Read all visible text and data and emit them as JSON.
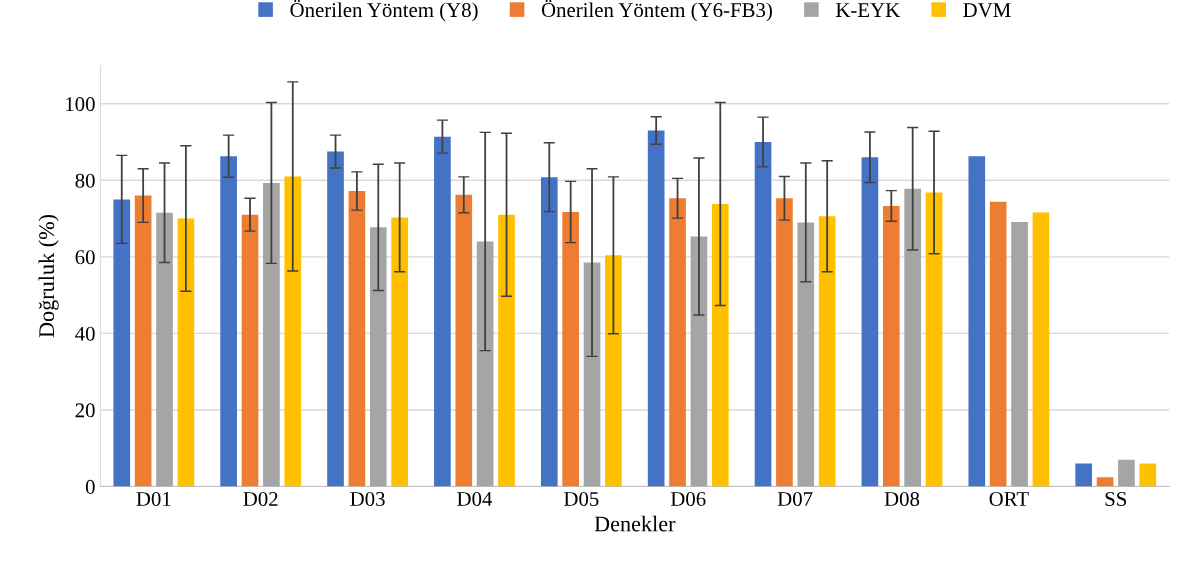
{
  "chart_data": {
    "type": "bar",
    "xlabel": "Denekler",
    "ylabel": "Doğruluk (%)",
    "categories": [
      "D01",
      "D02",
      "D03",
      "D04",
      "D05",
      "D06",
      "D07",
      "D08",
      "ORT",
      "SS"
    ],
    "series": [
      {
        "name": "Önerilen Yöntem (Y8)",
        "color": "#4472c4",
        "values": [
          75,
          86.3,
          87.5,
          91.4,
          80.8,
          93,
          90,
          86,
          86.3,
          6
        ],
        "errors": [
          11.5,
          5.5,
          4.3,
          4.3,
          9,
          3.6,
          6.5,
          6.6,
          null,
          null
        ]
      },
      {
        "name": "Önerilen Yöntem (Y6-FB3)",
        "color": "#ed7d31",
        "values": [
          76,
          71,
          77.2,
          76.2,
          71.7,
          75.3,
          75.3,
          73.3,
          74.4,
          2.4
        ],
        "errors": [
          7,
          4.3,
          5,
          4.7,
          8,
          5.2,
          5.7,
          4,
          null,
          null
        ]
      },
      {
        "name": "K-EYK",
        "color": "#a5a5a5",
        "values": [
          71.5,
          79.3,
          67.7,
          64,
          58.5,
          65.3,
          69,
          77.8,
          69.1,
          7
        ],
        "errors": [
          13,
          21,
          16.5,
          28.5,
          24.5,
          20.5,
          15.5,
          16,
          null,
          null
        ]
      },
      {
        "name": "DVM",
        "color": "#ffc000",
        "values": [
          70,
          81,
          70.3,
          71,
          60.4,
          73.8,
          70.6,
          76.8,
          71.6,
          6
        ],
        "errors": [
          19,
          24.7,
          14.2,
          21.3,
          20.5,
          26.5,
          14.5,
          16,
          null,
          null
        ]
      }
    ],
    "ylim": [
      0,
      110
    ],
    "yticks": [
      0,
      20,
      40,
      60,
      80,
      100
    ],
    "grid": "y",
    "legend": "top"
  }
}
